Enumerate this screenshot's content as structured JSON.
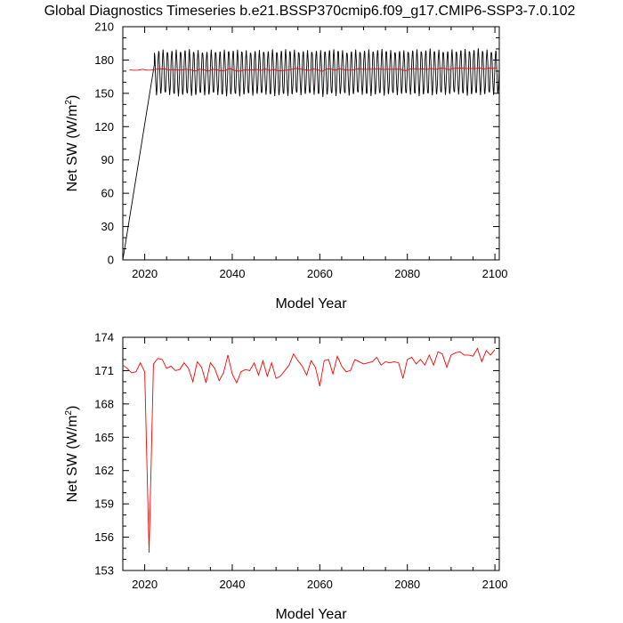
{
  "title": "Global Diagnostics Timeseries b.e21.BSSP370cmip6.f09_g17.CMIP6-SSP3-7.0.102",
  "colors": {
    "monthly": "#000000",
    "annual": "#ff0000"
  },
  "chart_data": [
    {
      "type": "line",
      "xlabel": "Model Year",
      "ylabel": "Net SW (W/m2)",
      "ylabel_parts": [
        "Net SW (W/m",
        "2",
        ")"
      ],
      "xlim": [
        2015,
        2101
      ],
      "ylim": [
        0,
        210
      ],
      "xticks": [
        2020,
        2040,
        2060,
        2080,
        2100
      ],
      "yticks": [
        0,
        30,
        60,
        90,
        120,
        150,
        180,
        210
      ],
      "series": [
        {
          "description": "monthly seasonal cycle (black)",
          "start_year": 2015,
          "start_value": 0,
          "ramp_end_year": 2022.2,
          "ramp_end_value": 176,
          "cycle_max": 188,
          "cycle_min": 149,
          "cycle_mean": 171
        },
        {
          "description": "annual mean (red)",
          "values_ref": "annual"
        }
      ]
    },
    {
      "type": "line",
      "xlabel": "Model Year",
      "ylabel": "Net SW (W/m2)",
      "ylabel_parts": [
        "Net SW (W/m",
        "2",
        ")"
      ],
      "xlim": [
        2015,
        2101
      ],
      "ylim": [
        153,
        174
      ],
      "xticks": [
        2020,
        2040,
        2060,
        2080,
        2100
      ],
      "yticks": [
        153,
        156,
        159,
        162,
        165,
        168,
        171,
        174
      ],
      "x_start": 2015,
      "annual": [
        171.5,
        171.2,
        170.8,
        170.9,
        171.7,
        170.9,
        154.6,
        171.6,
        172.1,
        172.0,
        171.2,
        171.4,
        171.0,
        171.1,
        171.7,
        171.2,
        170.0,
        171.8,
        171.3,
        169.9,
        171.7,
        171.2,
        170.1,
        170.8,
        172.4,
        170.7,
        169.9,
        170.9,
        171.1,
        171.0,
        171.7,
        170.6,
        171.9,
        170.5,
        171.7,
        170.3,
        170.5,
        171.0,
        171.5,
        172.5,
        171.9,
        171.4,
        170.6,
        171.9,
        171.3,
        169.6,
        171.9,
        172.0,
        170.7,
        172.3,
        171.4,
        170.9,
        171.0,
        172.0,
        171.8,
        171.6,
        171.7,
        171.8,
        172.2,
        171.5,
        171.8,
        171.7,
        171.8,
        171.7,
        170.3,
        172.0,
        172.2,
        171.6,
        172.0,
        171.5,
        172.4,
        171.5,
        172.7,
        172.5,
        171.3,
        172.4,
        172.6,
        172.7,
        172.4,
        172.4,
        172.3,
        173.0,
        171.8,
        172.8,
        172.4,
        172.9
      ]
    }
  ]
}
